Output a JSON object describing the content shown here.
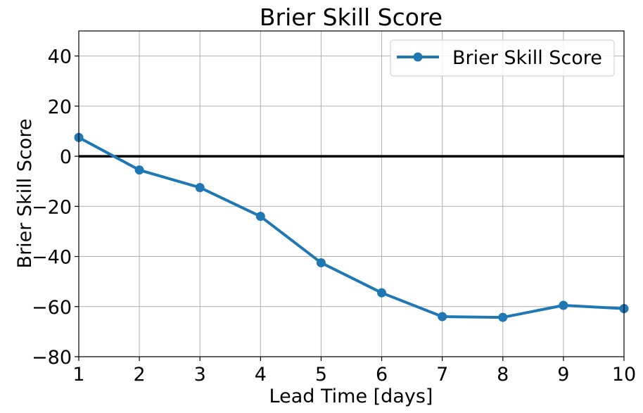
{
  "chart_data": {
    "type": "line",
    "title": "Brier Skill Score",
    "xlabel": "Lead Time [days]",
    "ylabel": "Brier Skill Score",
    "xlim": [
      1,
      10
    ],
    "ylim": [
      -80,
      50
    ],
    "xticks": [
      1,
      2,
      3,
      4,
      5,
      6,
      7,
      8,
      9,
      10
    ],
    "yticks": [
      -80,
      -60,
      -40,
      -20,
      0,
      20,
      40
    ],
    "ytick_labels": [
      "−80",
      "−60",
      "−40",
      "−20",
      "0",
      "20",
      "40"
    ],
    "grid": true,
    "legend_position": "top-right",
    "reference_line": {
      "y": 0,
      "color": "#000000"
    },
    "series": [
      {
        "name": "Brier Skill Score",
        "color": "#1f77b4",
        "marker": "circle",
        "x": [
          1,
          2,
          3,
          4,
          5,
          6,
          7,
          8,
          9,
          10
        ],
        "y": [
          7.5,
          -5.5,
          -12.5,
          -24,
          -42.5,
          -54.5,
          -64,
          -64.3,
          -59.5,
          -60.8
        ]
      }
    ]
  }
}
